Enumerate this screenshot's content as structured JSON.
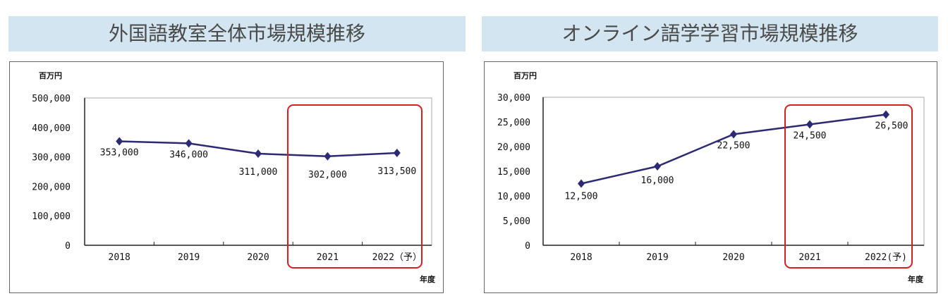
{
  "chart_data": [
    {
      "type": "line",
      "title": "外国語教室全体市場規模推移",
      "ylabel": "百万円",
      "xlabel": "年度",
      "categories": [
        "2018",
        "2019",
        "2020",
        "2021",
        "2022（予）"
      ],
      "values": [
        353000,
        346000,
        311000,
        302000,
        313500
      ],
      "value_labels": [
        "353,000",
        "346,000",
        "311,000",
        "302,000",
        "313,500"
      ],
      "yticks": [
        "0",
        "100,000",
        "200,000",
        "300,000",
        "400,000",
        "500,000"
      ],
      "ylim": [
        0,
        500000
      ],
      "highlight_categories": [
        "2021",
        "2022（予）"
      ],
      "colors": {
        "line": "#2b2a72",
        "highlight": "#d42020"
      }
    },
    {
      "type": "line",
      "title": "オンライン語学学習市場規模推移",
      "ylabel": "百万円",
      "xlabel": "年度",
      "categories": [
        "2018",
        "2019",
        "2020",
        "2021",
        "2022(予)"
      ],
      "values": [
        12500,
        16000,
        22500,
        24500,
        26500
      ],
      "value_labels": [
        "12,500",
        "16,000",
        "22,500",
        "24,500",
        "26,500"
      ],
      "yticks": [
        "0",
        "5,000",
        "10,000",
        "15,000",
        "20,000",
        "25,000",
        "30,000"
      ],
      "ylim": [
        0,
        30000
      ],
      "highlight_categories": [
        "2021",
        "2022(予)"
      ],
      "colors": {
        "line": "#2b2a72",
        "highlight": "#d42020"
      }
    }
  ]
}
